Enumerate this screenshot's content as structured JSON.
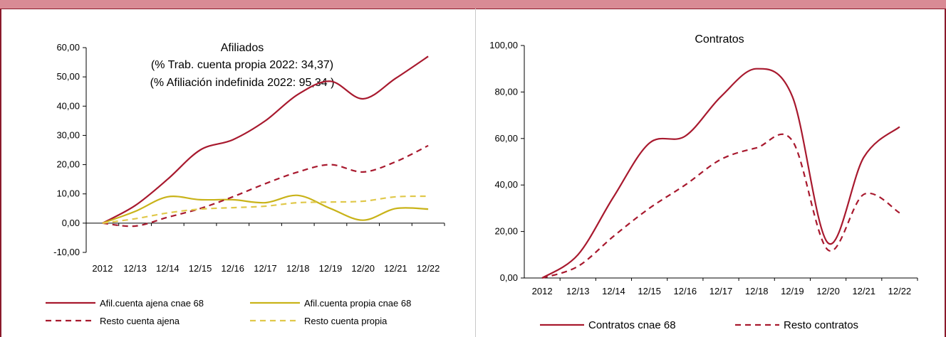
{
  "chart_data": [
    {
      "type": "line",
      "title": "Afiliados",
      "subtitle_lines": [
        "(% Trab. cuenta propia 2022: 34,37)",
        "(% Afiliación indefinida 2022: 95,34 )"
      ],
      "categories": [
        "2012",
        "12/13",
        "12/14",
        "12/15",
        "12/16",
        "12/17",
        "12/18",
        "12/19",
        "12/20",
        "12/21",
        "12/22"
      ],
      "ylim": [
        -10,
        60
      ],
      "yticks": [
        "-10,00",
        "0,00",
        "10,00",
        "20,00",
        "30,00",
        "40,00",
        "50,00",
        "60,00"
      ],
      "ytick_values": [
        -10,
        0,
        10,
        20,
        30,
        40,
        50,
        60
      ],
      "legend_position": "bottom",
      "series": [
        {
          "name": "Afil.cuenta ajena cnae 68",
          "color": "#a8192e",
          "dash": "solid",
          "values": [
            0,
            6,
            15,
            25,
            28.5,
            35,
            44,
            48.5,
            42.5,
            49.5,
            57
          ]
        },
        {
          "name": "Afil.cuenta propia cnae 68",
          "color": "#c9b319",
          "dash": "solid",
          "values": [
            0,
            4,
            9,
            8,
            8,
            7,
            9.5,
            5,
            1,
            5,
            4.8
          ]
        },
        {
          "name": "Resto cuenta ajena",
          "color": "#a8192e",
          "dash": "dashed",
          "values": [
            0,
            -1,
            2,
            5,
            9,
            13.5,
            17.5,
            20,
            17.5,
            21,
            26.5
          ]
        },
        {
          "name": "Resto cuenta propia",
          "color": "#e0c84a",
          "dash": "dashed",
          "values": [
            0,
            1.5,
            3.5,
            4.8,
            5.3,
            5.8,
            7,
            7.2,
            7.5,
            9,
            9.2
          ]
        }
      ]
    },
    {
      "type": "line",
      "title": "Contratos",
      "categories": [
        "2012",
        "12/13",
        "12/14",
        "12/15",
        "12/16",
        "12/17",
        "12/18",
        "12/19",
        "12/20",
        "12/21",
        "12/22"
      ],
      "ylim": [
        0,
        100
      ],
      "yticks": [
        "0,00",
        "20,00",
        "40,00",
        "60,00",
        "80,00",
        "100,00"
      ],
      "ytick_values": [
        0,
        20,
        40,
        60,
        80,
        100
      ],
      "legend_position": "bottom",
      "series": [
        {
          "name": "Contratos cnae 68",
          "color": "#a8192e",
          "dash": "solid",
          "values": [
            0,
            10,
            35,
            58,
            61,
            78,
            90,
            78,
            15,
            52,
            65
          ]
        },
        {
          "name": "Resto contratos",
          "color": "#a8192e",
          "dash": "dashed",
          "values": [
            0,
            5,
            18,
            30,
            40,
            51,
            56,
            59,
            12,
            36,
            28
          ]
        }
      ]
    }
  ]
}
